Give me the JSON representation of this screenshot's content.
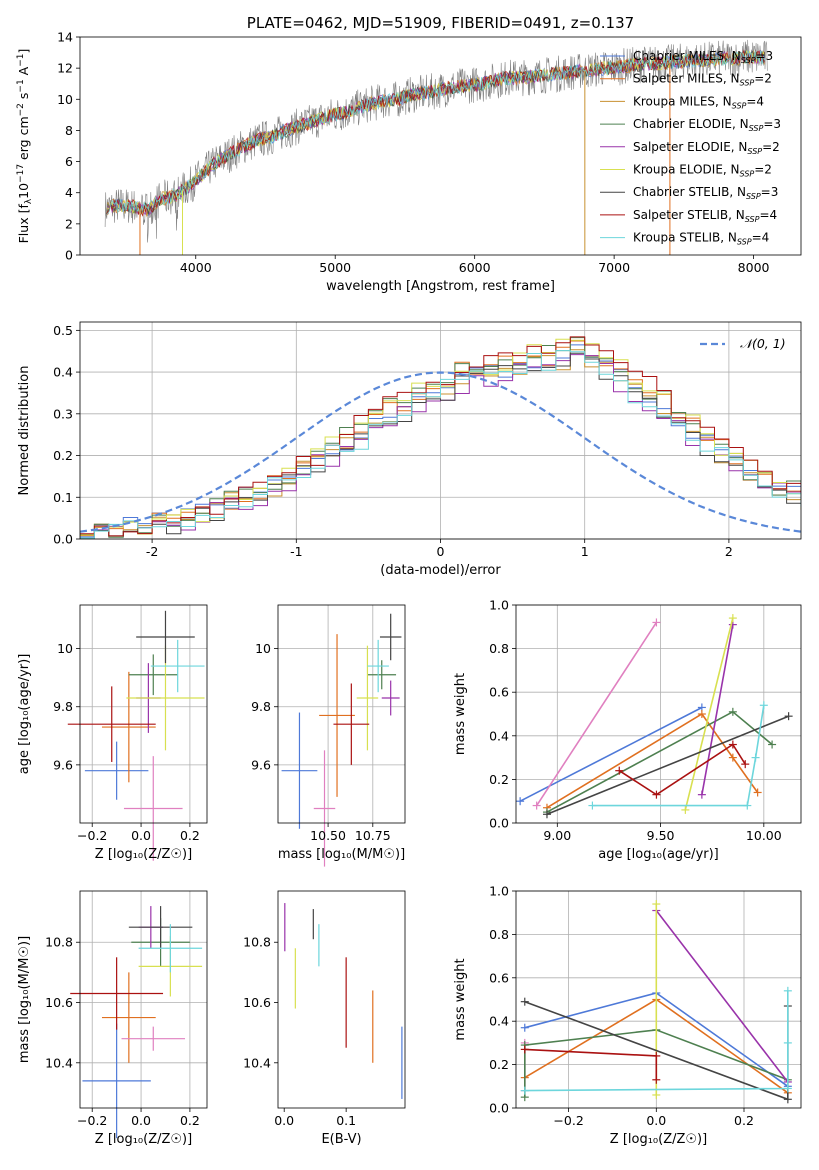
{
  "chart_data": [
    {
      "id": "spectrum",
      "type": "line",
      "title": "PLATE=0462, MJD=51909, FIBERID=0491, z=0.137",
      "xlabel": "wavelength [Angstrom, rest frame]",
      "ylabel_parts": [
        "Flux [f",
        "λ",
        "10",
        "−17",
        " erg cm",
        "−2",
        " s",
        "−1",
        " A",
        "−1",
        "]"
      ],
      "xlim": [
        3170,
        8340
      ],
      "ylim": [
        0,
        14
      ],
      "xticks": [
        4000,
        5000,
        6000,
        7000,
        8000
      ],
      "yticks": [
        0,
        2,
        4,
        6,
        8,
        10,
        12,
        14
      ],
      "data_series": {
        "name": "",
        "color": "#808080",
        "x": [
          3350,
          3450,
          3550,
          3650,
          3750,
          3850,
          3950,
          4050,
          4150,
          4250,
          4350,
          4450,
          4550,
          4650,
          4750,
          4850,
          4950,
          5050,
          5150,
          5250,
          5350,
          5450,
          5550,
          5650,
          5750,
          5850,
          5950,
          6050,
          6150,
          6250,
          6350,
          6450,
          6550,
          6650,
          6750,
          6850,
          6950,
          7050,
          7150,
          7250,
          7350,
          7450,
          7550,
          7650,
          7750,
          7850,
          7950,
          8050,
          8100
        ],
        "y": [
          3.0,
          3.2,
          3.1,
          2.9,
          3.6,
          3.8,
          4.4,
          5.2,
          6.0,
          6.5,
          7.0,
          7.4,
          7.6,
          8.0,
          8.3,
          8.6,
          8.9,
          9.1,
          9.4,
          9.7,
          9.9,
          10.0,
          10.3,
          10.4,
          10.6,
          10.8,
          10.9,
          11.0,
          11.2,
          11.4,
          11.4,
          11.5,
          11.6,
          11.7,
          11.8,
          11.9,
          12.0,
          12.1,
          12.2,
          12.3,
          12.3,
          12.4,
          12.5,
          12.5,
          12.6,
          12.6,
          12.7,
          12.7,
          12.6
        ]
      },
      "legend": [
        {
          "label": "Chabrier MILES, N",
          "sub": "SSP",
          "tail": "=3",
          "color": "#4e79d8"
        },
        {
          "label": "Salpeter MILES, N",
          "sub": "SSP",
          "tail": "=2",
          "color": "#e07020"
        },
        {
          "label": "Kroupa MILES, N",
          "sub": "SSP",
          "tail": "=4",
          "color": "#c89030"
        },
        {
          "label": "Chabrier ELODIE, N",
          "sub": "SSP",
          "tail": "=3",
          "color": "#4e8050"
        },
        {
          "label": "Salpeter ELODIE, N",
          "sub": "SSP",
          "tail": "=2",
          "color": "#9933aa"
        },
        {
          "label": "Kroupa ELODIE, N",
          "sub": "SSP",
          "tail": "=2",
          "color": "#d8e050"
        },
        {
          "label": "Chabrier STELIB, N",
          "sub": "SSP",
          "tail": "=3",
          "color": "#444444"
        },
        {
          "label": "Salpeter STELIB, N",
          "sub": "SSP",
          "tail": "=4",
          "color": "#aa1111"
        },
        {
          "label": "Kroupa STELIB, N",
          "sub": "SSP",
          "tail": "=4",
          "color": "#6dd6dc"
        }
      ],
      "legend_placement": "upper right",
      "grid": false
    },
    {
      "id": "residuals",
      "type": "histogram",
      "xlabel": "(data-model)/error",
      "ylabel": "Normed distribution",
      "xlim": [
        -2.5,
        2.5
      ],
      "ylim": [
        0,
        0.52
      ],
      "xticks": [
        -2,
        -1,
        0,
        1,
        2
      ],
      "yticks": [
        0.0,
        0.1,
        0.2,
        0.3,
        0.4,
        0.5
      ],
      "grid": true,
      "bin_width": 0.1,
      "bin_start": -2.5,
      "reference": {
        "label": "𝒩(0, 1)",
        "mean": 0,
        "sigma": 1,
        "color": "#5a88d8"
      },
      "legend_placement": "upper right",
      "base_histogram": [
        0.03,
        0.03,
        0.02,
        0.03,
        0.03,
        0.04,
        0.04,
        0.05,
        0.06,
        0.07,
        0.09,
        0.1,
        0.11,
        0.13,
        0.14,
        0.17,
        0.19,
        0.21,
        0.23,
        0.25,
        0.27,
        0.3,
        0.32,
        0.34,
        0.36,
        0.37,
        0.39,
        0.4,
        0.4,
        0.41,
        0.42,
        0.43,
        0.43,
        0.44,
        0.45,
        0.44,
        0.42,
        0.39,
        0.36,
        0.34,
        0.32,
        0.29,
        0.26,
        0.24,
        0.21,
        0.19,
        0.16,
        0.14,
        0.12,
        0.11,
        0.09,
        0.08,
        0.07,
        0.06,
        0.05,
        0.05,
        0.04,
        0.04,
        0.03,
        0.03,
        0.03,
        0.02,
        0.03,
        0.02,
        0.02,
        0.02,
        0.02,
        0.02,
        0.02,
        0.01
      ],
      "model_offsets": [
        0.0,
        0.01,
        -0.01,
        0.02,
        -0.02,
        0.015,
        -0.015,
        0.025,
        -0.01
      ]
    },
    {
      "id": "age-vs-Z",
      "type": "errorbar",
      "xlabel": "Z [log₁₀(Z/Z☉)]",
      "ylabel": "age  [log₁₀(age/yr)]",
      "xlim": [
        -0.25,
        0.27
      ],
      "ylim": [
        9.4,
        10.15
      ],
      "xticks": [
        -0.2,
        0.0,
        0.2
      ],
      "xtick_labels": [
        "−0.2",
        "0.0",
        "0.2"
      ],
      "yticks": [
        9.6,
        9.8,
        10.0
      ],
      "grid": true,
      "points": [
        {
          "x": -0.1,
          "xerr": 0.13,
          "y": 9.58,
          "yerr": 0.1,
          "color": "#4e79d8"
        },
        {
          "x": -0.05,
          "xerr": 0.11,
          "y": 9.73,
          "yerr": 0.19,
          "color": "#e07020"
        },
        {
          "x": 0.05,
          "xerr": 0.12,
          "y": 9.45,
          "yerr": 0.18,
          "color": "#e080c0"
        },
        {
          "x": 0.05,
          "xerr": 0.1,
          "y": 9.91,
          "yerr": 0.07,
          "color": "#4e8050"
        },
        {
          "x": 0.03,
          "xerr": 0.05,
          "y": 9.83,
          "yerr": 0.12,
          "color": "#9933aa"
        },
        {
          "x": 0.1,
          "xerr": 0.16,
          "y": 9.83,
          "yerr": 0.18,
          "color": "#d8e050"
        },
        {
          "x": 0.1,
          "xerr": 0.12,
          "y": 10.04,
          "yerr": 0.09,
          "color": "#444444"
        },
        {
          "x": -0.12,
          "xerr": 0.18,
          "y": 9.74,
          "yerr": 0.13,
          "color": "#aa1111"
        },
        {
          "x": 0.15,
          "xerr": 0.11,
          "y": 9.94,
          "yerr": 0.09,
          "color": "#6dd6dc"
        }
      ]
    },
    {
      "id": "age-vs-mass",
      "type": "errorbar",
      "xlabel": "mass [log₁₀(M/M☉)]",
      "ylabel": "",
      "xlim": [
        10.22,
        10.93
      ],
      "ylim": [
        9.4,
        10.15
      ],
      "xticks": [
        10.5,
        10.75
      ],
      "xtick_labels": [
        "10.50",
        "10.75"
      ],
      "yticks": [
        9.6,
        9.8,
        10.0
      ],
      "grid": true,
      "points": [
        {
          "x": 10.34,
          "xerr": 0.1,
          "y": 9.58,
          "yerr": 0.2,
          "color": "#4e79d8"
        },
        {
          "x": 10.55,
          "xerr": 0.1,
          "y": 9.77,
          "yerr": 0.28,
          "color": "#e07020"
        },
        {
          "x": 10.48,
          "xerr": 0.06,
          "y": 9.45,
          "yerr": 0.2,
          "color": "#e080c0"
        },
        {
          "x": 10.8,
          "xerr": 0.08,
          "y": 9.91,
          "yerr": 0.05,
          "color": "#4e8050"
        },
        {
          "x": 10.85,
          "xerr": 0.05,
          "y": 9.83,
          "yerr": 0.06,
          "color": "#9933aa"
        },
        {
          "x": 10.72,
          "xerr": 0.06,
          "y": 9.83,
          "yerr": 0.18,
          "color": "#d8e050"
        },
        {
          "x": 10.85,
          "xerr": 0.06,
          "y": 10.04,
          "yerr": 0.08,
          "color": "#444444"
        },
        {
          "x": 10.63,
          "xerr": 0.1,
          "y": 9.74,
          "yerr": 0.14,
          "color": "#aa1111"
        },
        {
          "x": 10.78,
          "xerr": 0.06,
          "y": 9.94,
          "yerr": 0.09,
          "color": "#6dd6dc"
        }
      ]
    },
    {
      "id": "weight-vs-age",
      "type": "line",
      "xlabel": "age  [log₁₀(age/yr)]",
      "ylabel": "mass weight",
      "xlim": [
        8.8,
        10.18
      ],
      "ylim": [
        0,
        1
      ],
      "xticks": [
        9.0,
        9.5,
        10.0
      ],
      "xtick_labels": [
        "9.00",
        "9.50",
        "10.00"
      ],
      "yticks": [
        0.0,
        0.2,
        0.4,
        0.6,
        0.8,
        1.0
      ],
      "grid": true,
      "series": [
        {
          "color": "#4e79d8",
          "x": [
            8.82,
            9.7
          ],
          "y": [
            0.1,
            0.53
          ]
        },
        {
          "color": "#e07020",
          "x": [
            8.95,
            9.7,
            9.85,
            9.97
          ],
          "y": [
            0.07,
            0.5,
            0.3,
            0.14
          ]
        },
        {
          "color": "#e080c0",
          "x": [
            8.9,
            9.48
          ],
          "y": [
            0.08,
            0.92
          ]
        },
        {
          "color": "#4e8050",
          "x": [
            8.95,
            9.85,
            10.04
          ],
          "y": [
            0.05,
            0.51,
            0.36
          ]
        },
        {
          "color": "#9933aa",
          "x": [
            9.7,
            9.85
          ],
          "y": [
            0.13,
            0.91
          ]
        },
        {
          "color": "#d8e050",
          "x": [
            9.62,
            9.85
          ],
          "y": [
            0.06,
            0.94
          ]
        },
        {
          "color": "#444444",
          "x": [
            8.95,
            10.12
          ],
          "y": [
            0.04,
            0.49
          ]
        },
        {
          "color": "#aa1111",
          "x": [
            9.3,
            9.48,
            9.85,
            9.91
          ],
          "y": [
            0.24,
            0.13,
            0.36,
            0.27
          ]
        },
        {
          "color": "#6dd6dc",
          "x": [
            9.17,
            9.92,
            9.96,
            10.0
          ],
          "y": [
            0.08,
            0.08,
            0.3,
            0.54
          ]
        }
      ]
    },
    {
      "id": "mass-vs-Z",
      "type": "errorbar",
      "xlabel": "Z [log₁₀(Z/Z☉)]",
      "ylabel": "mass [log₁₀(M/M☉)]",
      "xlim": [
        -0.25,
        0.27
      ],
      "ylim": [
        10.25,
        10.97
      ],
      "xticks": [
        -0.2,
        0.0,
        0.2
      ],
      "xtick_labels": [
        "−0.2",
        "0.0",
        "0.2"
      ],
      "yticks": [
        10.4,
        10.6,
        10.8
      ],
      "grid": true,
      "points": [
        {
          "x": -0.1,
          "xerr": 0.14,
          "y": 10.34,
          "yerr": 0.19,
          "color": "#4e79d8"
        },
        {
          "x": -0.05,
          "xerr": 0.11,
          "y": 10.55,
          "yerr": 0.15,
          "color": "#e07020"
        },
        {
          "x": 0.05,
          "xerr": 0.13,
          "y": 10.48,
          "yerr": 0.04,
          "color": "#e080c0"
        },
        {
          "x": 0.08,
          "xerr": 0.12,
          "y": 10.8,
          "yerr": 0.08,
          "color": "#4e8050"
        },
        {
          "x": 0.04,
          "xerr": 0.05,
          "y": 10.85,
          "yerr": 0.07,
          "color": "#9933aa"
        },
        {
          "x": 0.12,
          "xerr": 0.13,
          "y": 10.72,
          "yerr": 0.1,
          "color": "#d8e050"
        },
        {
          "x": 0.08,
          "xerr": 0.13,
          "y": 10.85,
          "yerr": 0.07,
          "color": "#444444"
        },
        {
          "x": -0.1,
          "xerr": 0.19,
          "y": 10.63,
          "yerr": 0.12,
          "color": "#aa1111"
        },
        {
          "x": 0.12,
          "xerr": 0.13,
          "y": 10.78,
          "yerr": 0.08,
          "color": "#6dd6dc"
        }
      ]
    },
    {
      "id": "mass-vs-EBV",
      "type": "errorbar",
      "xlabel": "E(B-V)",
      "ylabel": "",
      "xlim": [
        -0.01,
        0.195
      ],
      "ylim": [
        10.25,
        10.97
      ],
      "xticks": [
        0.0,
        0.1
      ],
      "xtick_labels": [
        "0.0",
        "0.1"
      ],
      "yticks": [
        10.4,
        10.6,
        10.8
      ],
      "grid": false,
      "points": [
        {
          "x": 0.19,
          "xerr": 0,
          "y": 10.4,
          "yerr": 0.12,
          "color": "#4e79d8"
        },
        {
          "x": 0.143,
          "xerr": 0,
          "y": 10.52,
          "yerr": 0.12,
          "color": "#e07020"
        },
        {
          "x": 0.001,
          "xerr": 0,
          "y": 10.85,
          "yerr": 0.08,
          "color": "#9933aa"
        },
        {
          "x": 0.018,
          "xerr": 0,
          "y": 10.68,
          "yerr": 0.1,
          "color": "#d8e050"
        },
        {
          "x": 0.047,
          "xerr": 0,
          "y": 10.86,
          "yerr": 0.05,
          "color": "#444444"
        },
        {
          "x": 0.1,
          "xerr": 0,
          "y": 10.6,
          "yerr": 0.15,
          "color": "#aa1111"
        },
        {
          "x": 0.056,
          "xerr": 0,
          "y": 10.79,
          "yerr": 0.07,
          "color": "#6dd6dc"
        }
      ]
    },
    {
      "id": "weight-vs-Z",
      "type": "line",
      "xlabel": "Z [log₁₀(Z/Z☉)]",
      "ylabel": "mass weight",
      "xlim": [
        -0.32,
        0.33
      ],
      "ylim": [
        0,
        1
      ],
      "xticks": [
        -0.2,
        0.0,
        0.2
      ],
      "xtick_labels": [
        "−0.2",
        "0.0",
        "0.2"
      ],
      "yticks": [
        0.0,
        0.2,
        0.4,
        0.6,
        0.8,
        1.0
      ],
      "grid": true,
      "series": [
        {
          "color": "#4e79d8",
          "x": [
            -0.3,
            0.0,
            0.3
          ],
          "y": [
            0.37,
            0.53,
            0.1
          ]
        },
        {
          "color": "#e07020",
          "x": [
            -0.3,
            0.0,
            0.3
          ],
          "y": [
            0.14,
            0.5,
            0.07
          ]
        },
        {
          "color": "#e080c0",
          "x": [
            -0.3,
            -0.3
          ],
          "y": [
            0.08,
            0.3
          ]
        },
        {
          "color": "#4e8050",
          "x": [
            -0.3,
            -0.3,
            0.0,
            0.3
          ],
          "y": [
            0.05,
            0.29,
            0.36,
            0.13
          ]
        },
        {
          "color": "#9933aa",
          "x": [
            0.0,
            0.3
          ],
          "y": [
            0.91,
            0.12
          ]
        },
        {
          "color": "#d8e050",
          "x": [
            0.0,
            0.0
          ],
          "y": [
            0.06,
            0.94
          ]
        },
        {
          "color": "#444444",
          "x": [
            -0.3,
            0.3,
            0.3
          ],
          "y": [
            0.49,
            0.04,
            0.47
          ]
        },
        {
          "color": "#aa1111",
          "x": [
            -0.3,
            0.0,
            0.0
          ],
          "y": [
            0.27,
            0.24,
            0.13
          ]
        },
        {
          "color": "#6dd6dc",
          "x": [
            -0.3,
            0.3,
            0.3,
            0.3
          ],
          "y": [
            0.08,
            0.09,
            0.3,
            0.54
          ]
        }
      ]
    }
  ]
}
